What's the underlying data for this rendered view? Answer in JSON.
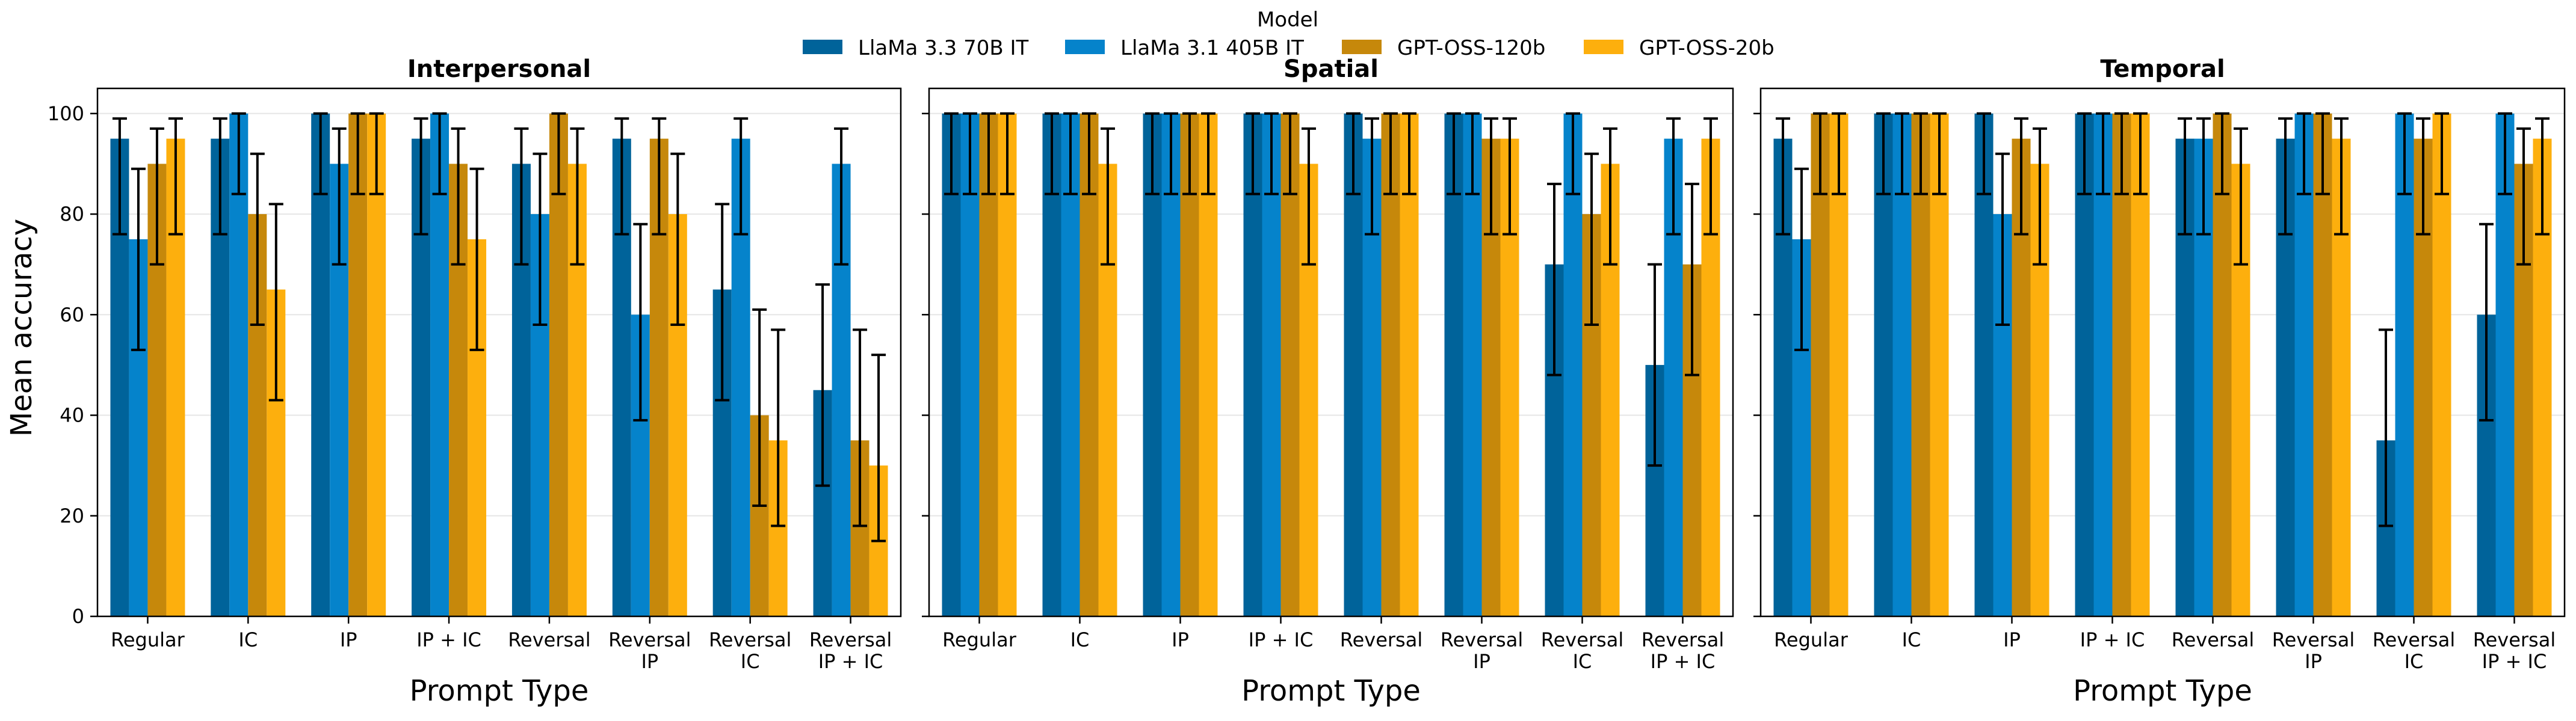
{
  "chart_data": {
    "type": "bar",
    "ylabel": "Mean accuracy",
    "xlabel": "Prompt Type",
    "ylim": [
      0,
      105
    ],
    "yticks": [
      0,
      20,
      40,
      60,
      80,
      100
    ],
    "categories": [
      "Regular",
      "IC",
      "IP",
      "IP + IC",
      "Reversal",
      "Reversal\nIP",
      "Reversal\nIC",
      "Reversal\nIP + IC"
    ],
    "grid": "horizontal",
    "legend": {
      "title": "Model",
      "placement": "top-center",
      "entries": [
        {
          "name": "LlaMa 3.3 70B IT",
          "color": "#00639a"
        },
        {
          "name": "LlaMa 3.1 405B IT",
          "color": "#0583cb"
        },
        {
          "name": "GPT-OSS-120b",
          "color": "#c6880b"
        },
        {
          "name": "GPT-OSS-20b",
          "color": "#fdaf0d"
        }
      ]
    },
    "panels": [
      {
        "title": "Interpersonal",
        "series": [
          {
            "name": "LlaMa 3.3 70B IT",
            "values": [
              95,
              95,
              100,
              95,
              90,
              95,
              65,
              45
            ],
            "err_low": [
              76,
              76,
              84,
              76,
              70,
              76,
              43,
              26
            ],
            "err_high": [
              99,
              99,
              100,
              99,
              97,
              99,
              82,
              66
            ]
          },
          {
            "name": "LlaMa 3.1 405B IT",
            "values": [
              75,
              100,
              90,
              100,
              80,
              60,
              95,
              90
            ],
            "err_low": [
              53,
              84,
              70,
              84,
              58,
              39,
              76,
              70
            ],
            "err_high": [
              89,
              100,
              97,
              100,
              92,
              78,
              99,
              97
            ]
          },
          {
            "name": "GPT-OSS-120b",
            "values": [
              90,
              80,
              100,
              90,
              100,
              95,
              40,
              35
            ],
            "err_low": [
              70,
              58,
              84,
              70,
              84,
              76,
              22,
              18
            ],
            "err_high": [
              97,
              92,
              100,
              97,
              100,
              99,
              61,
              57
            ]
          },
          {
            "name": "GPT-OSS-20b",
            "values": [
              95,
              65,
              100,
              75,
              90,
              80,
              35,
              30
            ],
            "err_low": [
              76,
              43,
              84,
              53,
              70,
              58,
              18,
              15
            ],
            "err_high": [
              99,
              82,
              100,
              89,
              97,
              92,
              57,
              52
            ]
          }
        ]
      },
      {
        "title": "Spatial",
        "series": [
          {
            "name": "LlaMa 3.3 70B IT",
            "values": [
              100,
              100,
              100,
              100,
              100,
              100,
              70,
              50
            ],
            "err_low": [
              84,
              84,
              84,
              84,
              84,
              84,
              48,
              30
            ],
            "err_high": [
              100,
              100,
              100,
              100,
              100,
              100,
              86,
              70
            ]
          },
          {
            "name": "LlaMa 3.1 405B IT",
            "values": [
              100,
              100,
              100,
              100,
              95,
              100,
              100,
              95
            ],
            "err_low": [
              84,
              84,
              84,
              84,
              76,
              84,
              84,
              76
            ],
            "err_high": [
              100,
              100,
              100,
              100,
              99,
              100,
              100,
              99
            ]
          },
          {
            "name": "GPT-OSS-120b",
            "values": [
              100,
              100,
              100,
              100,
              100,
              95,
              80,
              70
            ],
            "err_low": [
              84,
              84,
              84,
              84,
              84,
              76,
              58,
              48
            ],
            "err_high": [
              100,
              100,
              100,
              100,
              100,
              99,
              92,
              86
            ]
          },
          {
            "name": "GPT-OSS-20b",
            "values": [
              100,
              90,
              100,
              90,
              100,
              95,
              90,
              95
            ],
            "err_low": [
              84,
              70,
              84,
              70,
              84,
              76,
              70,
              76
            ],
            "err_high": [
              100,
              97,
              100,
              97,
              100,
              99,
              97,
              99
            ]
          }
        ]
      },
      {
        "title": "Temporal",
        "series": [
          {
            "name": "LlaMa 3.3 70B IT",
            "values": [
              95,
              100,
              100,
              100,
              95,
              95,
              35,
              60
            ],
            "err_low": [
              76,
              84,
              84,
              84,
              76,
              76,
              18,
              39
            ],
            "err_high": [
              99,
              100,
              100,
              100,
              99,
              99,
              57,
              78
            ]
          },
          {
            "name": "LlaMa 3.1 405B IT",
            "values": [
              75,
              100,
              80,
              100,
              95,
              100,
              100,
              100
            ],
            "err_low": [
              53,
              84,
              58,
              84,
              76,
              84,
              84,
              84
            ],
            "err_high": [
              89,
              100,
              92,
              100,
              99,
              100,
              100,
              100
            ]
          },
          {
            "name": "GPT-OSS-120b",
            "values": [
              100,
              100,
              95,
              100,
              100,
              100,
              95,
              90
            ],
            "err_low": [
              84,
              84,
              76,
              84,
              84,
              84,
              76,
              70
            ],
            "err_high": [
              100,
              100,
              99,
              100,
              100,
              100,
              99,
              97
            ]
          },
          {
            "name": "GPT-OSS-20b",
            "values": [
              100,
              100,
              90,
              100,
              90,
              95,
              100,
              95
            ],
            "err_low": [
              84,
              84,
              70,
              84,
              70,
              76,
              84,
              76
            ],
            "err_high": [
              100,
              100,
              97,
              100,
              97,
              99,
              100,
              99
            ]
          }
        ]
      }
    ]
  }
}
